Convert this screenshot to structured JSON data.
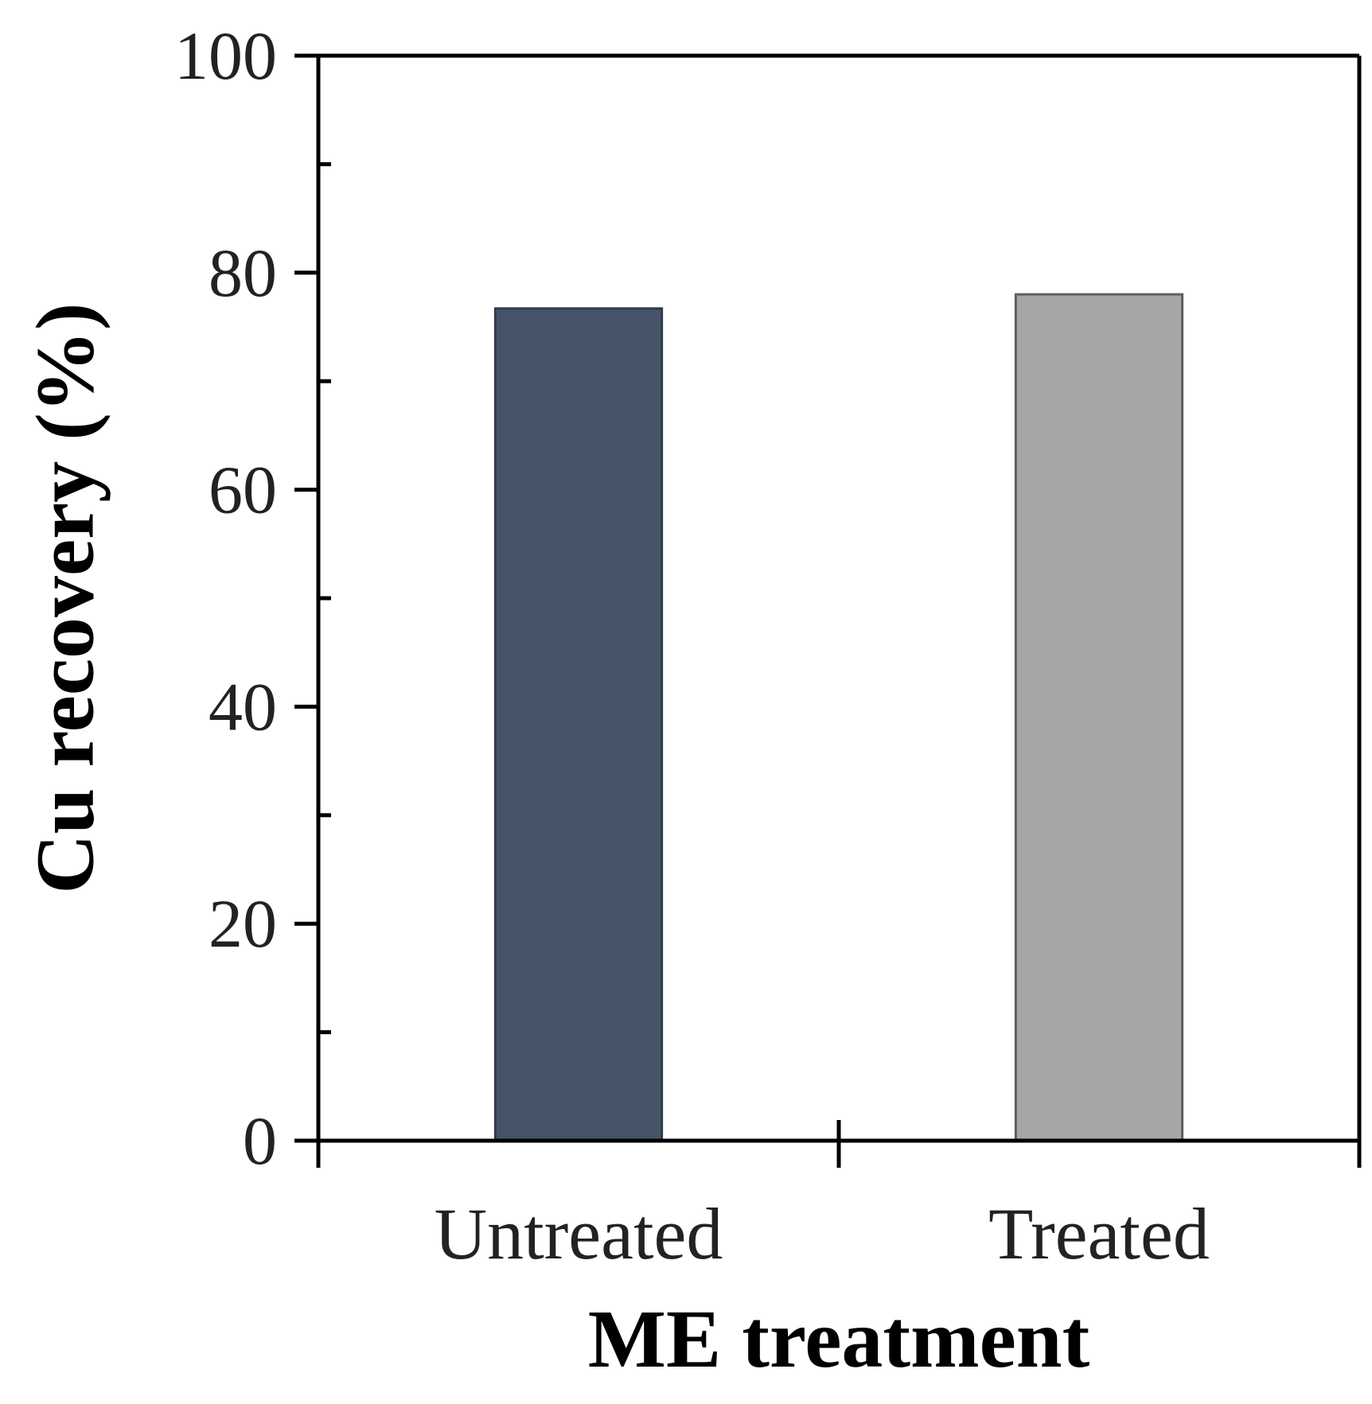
{
  "chart_data": {
    "type": "bar",
    "title": "",
    "xlabel": "ME treatment",
    "ylabel": "Cu recovery  (%)",
    "categories": [
      "Untreated",
      "Treated"
    ],
    "values": [
      76.7,
      78.0
    ],
    "bar_colors": [
      "#465469",
      "#a6a6a6"
    ],
    "bar_outline_colors": [
      "#2f3a4a",
      "#5e5e5e"
    ],
    "ylim": [
      0,
      100
    ],
    "y_major_ticks": [
      0,
      20,
      40,
      60,
      80,
      100
    ],
    "y_tick_labels": [
      "0",
      "20",
      "40",
      "60",
      "80",
      "100"
    ],
    "y_minor_ticks": [
      10,
      30,
      50,
      70,
      90
    ],
    "grid": false,
    "legend": "none"
  }
}
